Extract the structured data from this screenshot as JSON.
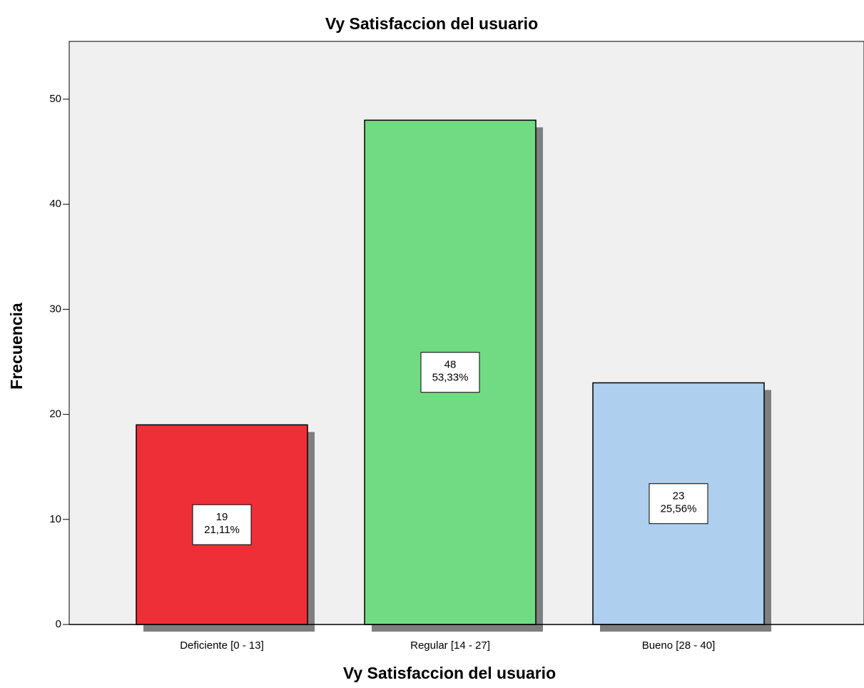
{
  "chart_data": {
    "type": "bar",
    "title": "Vy Satisfaccion del usuario",
    "x_label": "Vy Satisfaccion del usuario",
    "y_label": "Frecuencia",
    "categories": [
      "Deficiente [0 - 13]",
      "Regular [14 - 27]",
      "Bueno [28 - 40]"
    ],
    "values": [
      19,
      48,
      23
    ],
    "percent_labels": [
      "21,11%",
      "53,33%",
      "25,56%"
    ],
    "colors": [
      "#ef2f38",
      "#70db83",
      "#aecfee"
    ],
    "ylim": [
      0,
      55.5
    ],
    "yticks": [
      0,
      10,
      20,
      30,
      40,
      50
    ],
    "grid": false
  }
}
